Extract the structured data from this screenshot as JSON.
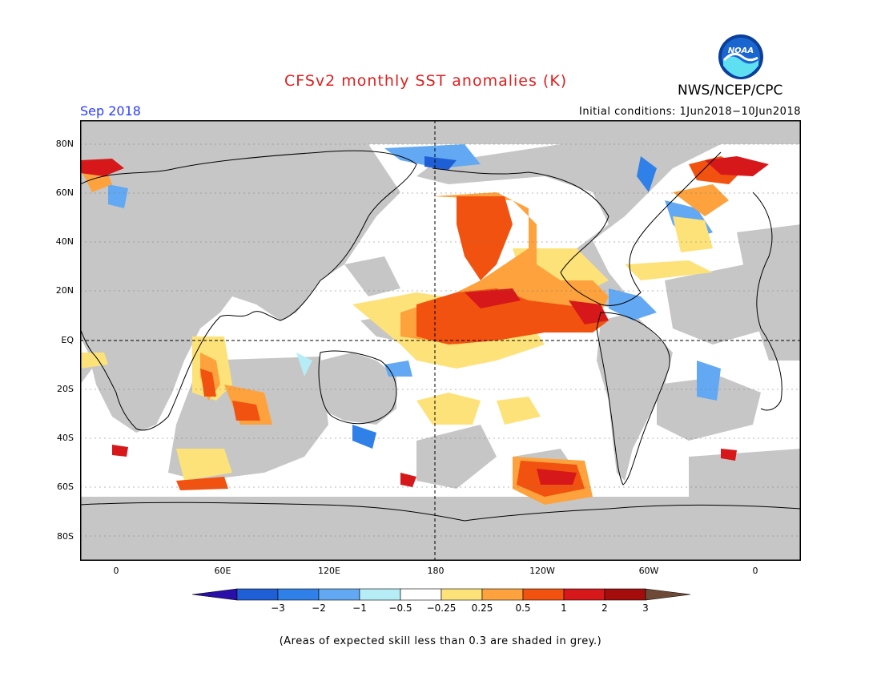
{
  "title": "CFSv2 monthly SST anomalies (K)",
  "agency": "NWS/NCEP/CPC",
  "logo_text": "NOAA",
  "month": "Sep 2018",
  "initial_conditions": "Initial conditions: 1Jun2018−10Jun2018",
  "lat_labels": [
    "80N",
    "60N",
    "40N",
    "20N",
    "EQ",
    "20S",
    "40S",
    "60S",
    "80S"
  ],
  "lon_labels": [
    "0",
    "60E",
    "120E",
    "180",
    "120W",
    "60W",
    "0"
  ],
  "colorbar": {
    "labels": [
      "−3",
      "−2",
      "−1",
      "−0.5",
      "−0.25",
      "0.25",
      "0.5",
      "1",
      "2",
      "3"
    ],
    "colors": [
      "#2a0ea8",
      "#1f5fd6",
      "#2f80e8",
      "#62a8f2",
      "#b6ecf6",
      "#ffffff",
      "#fde27a",
      "#fda23c",
      "#f2520f",
      "#d7181a",
      "#a50d0d",
      "#6e4a36"
    ]
  },
  "note": "(Areas of expected skill less than 0.3 are shaded in grey.)",
  "colors": {
    "title": "#e01e1e",
    "month": "#2a3cff",
    "skill_grey": "#c6c6c6",
    "land": "#c6c6c6"
  }
}
